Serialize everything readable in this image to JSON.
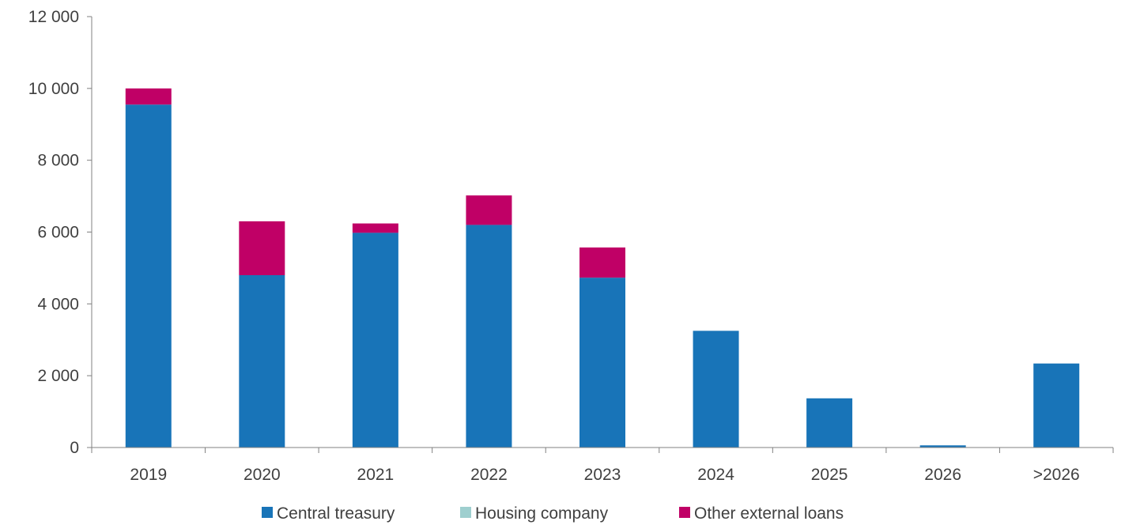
{
  "chart_data": {
    "type": "bar",
    "stacked": true,
    "title": "",
    "xlabel": "",
    "ylabel": "",
    "categories": [
      "2019",
      "2020",
      "2021",
      "2022",
      "2023",
      "2024",
      "2025",
      "2026",
      ">2026"
    ],
    "ylim": [
      0,
      12000
    ],
    "yticks": [
      0,
      2000,
      4000,
      6000,
      8000,
      10000,
      12000
    ],
    "ytick_labels": [
      "0",
      "2 000",
      "4 000",
      "6 000",
      "8 000",
      "10 000",
      "12 000"
    ],
    "grid": false,
    "legend_position": "bottom",
    "series": [
      {
        "name": "Central treasury",
        "color": "#1874B8",
        "values": [
          9550,
          4800,
          5980,
          6200,
          4730,
          3250,
          1370,
          60,
          2340
        ]
      },
      {
        "name": "Housing company",
        "color": "#9ECFCF",
        "values": [
          0,
          0,
          0,
          0,
          0,
          0,
          0,
          0,
          0
        ]
      },
      {
        "name": "Other external loans",
        "color": "#C00066",
        "values": [
          450,
          1500,
          260,
          820,
          840,
          0,
          0,
          0,
          0
        ]
      }
    ]
  }
}
